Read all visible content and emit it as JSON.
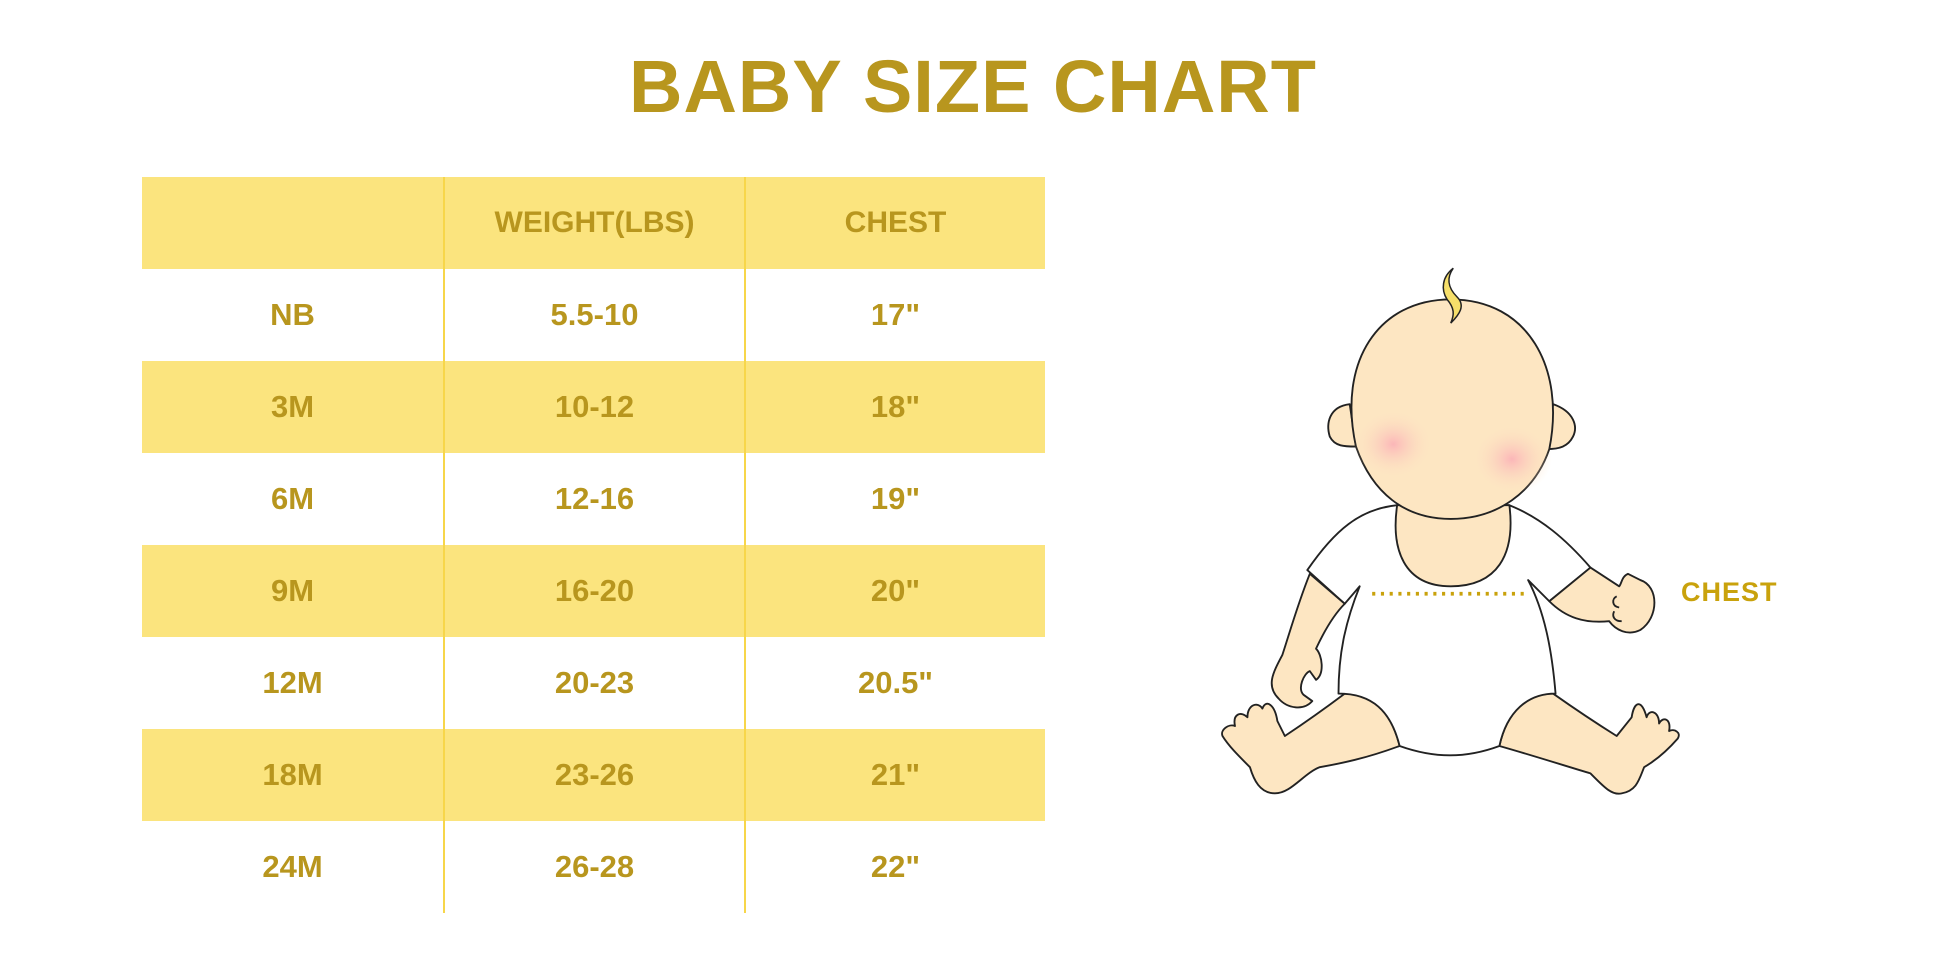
{
  "title": "BABY SIZE CHART",
  "colors": {
    "text": "#b8961e",
    "row_fill": "#fbe47e",
    "divider": "#f7d64a",
    "skin": "#fde6c2",
    "hair": "#f6df6a",
    "cheek": "#fbb6b8"
  },
  "table": {
    "headers": [
      "",
      "WEIGHT(LBS)",
      "CHEST"
    ],
    "rows": [
      [
        "NB",
        "5.5-10",
        "17\""
      ],
      [
        "3M",
        "10-12",
        "18\""
      ],
      [
        "6M",
        "12-16",
        "19\""
      ],
      [
        "9M",
        "16-20",
        "20\""
      ],
      [
        "12M",
        "20-23",
        "20.5\""
      ],
      [
        "18M",
        "23-26",
        "21\""
      ],
      [
        "24M",
        "26-28",
        "22\""
      ]
    ]
  },
  "illustration": {
    "chest_label": "CHEST",
    "icon": "baby-illustration"
  }
}
